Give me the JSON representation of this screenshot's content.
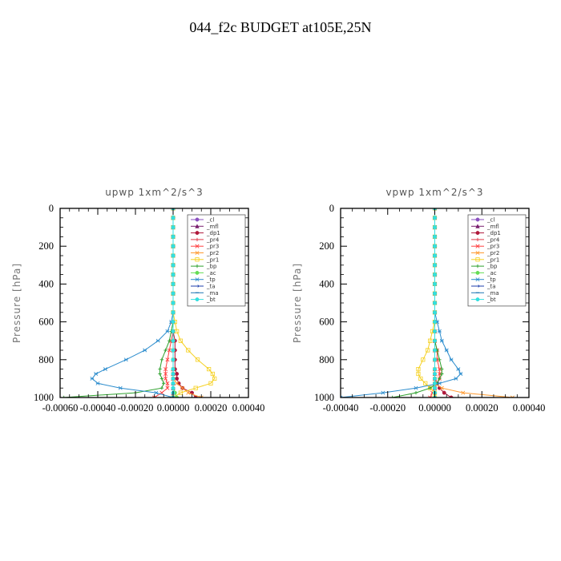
{
  "title": "044_f2c  BUDGET at105E,25N",
  "chart_data": [
    {
      "type": "line",
      "title": "upwp   1xm^2/s^3",
      "xlabel": "",
      "ylabel": "Pressure [hPa]",
      "xlim": [
        -0.0006,
        0.0004
      ],
      "ylim": [
        1000,
        0
      ],
      "xtick_labels": [
        "-0.00060",
        "-0.00040",
        "-0.00020",
        "0.00000",
        "0.00020",
        "0.00040"
      ],
      "xticks": [
        -0.0006,
        -0.0004,
        -0.0002,
        0.0,
        0.0002,
        0.0004
      ],
      "ytick_labels": [
        "0",
        "200",
        "400",
        "600",
        "800",
        "1000"
      ],
      "yticks": [
        0,
        200,
        400,
        600,
        800,
        1000
      ],
      "legend": "top-right",
      "y": [
        0,
        50,
        100,
        150,
        200,
        250,
        300,
        350,
        400,
        450,
        500,
        550,
        600,
        650,
        700,
        750,
        800,
        850,
        875,
        900,
        925,
        950,
        975,
        1000
      ],
      "series": [
        {
          "name": "_cl",
          "color": "#8a4fbf",
          "marker": "circle",
          "values": [
            0,
            0,
            0,
            0,
            0,
            0,
            0,
            0,
            0,
            0,
            0,
            0,
            0,
            0,
            0,
            0,
            0,
            0,
            0,
            0,
            0,
            0,
            0,
            0
          ]
        },
        {
          "name": "_mfl",
          "color": "#7a1f6e",
          "marker": "triangle",
          "values": [
            0,
            0,
            0,
            0,
            0,
            0,
            0,
            0,
            0,
            0,
            0,
            0,
            0,
            0,
            0,
            0,
            0,
            0,
            0,
            0,
            0,
            0,
            0,
            0
          ]
        },
        {
          "name": "_dp1",
          "color": "#b01a3c",
          "marker": "circle",
          "values": [
            0,
            0,
            0,
            0,
            0,
            0,
            0,
            0,
            0,
            0,
            0,
            0,
            0,
            0,
            1e-05,
            1e-05,
            1e-05,
            1e-05,
            2e-05,
            2e-05,
            3e-05,
            5e-05,
            0.0001,
            0.00012
          ]
        },
        {
          "name": "_pr4",
          "color": "#e03a4a",
          "marker": "plus",
          "values": [
            0,
            0,
            0,
            0,
            0,
            0,
            0,
            0,
            0,
            0,
            0,
            0,
            0,
            0,
            0,
            0,
            0,
            0,
            0,
            0,
            0,
            0,
            0,
            0
          ]
        },
        {
          "name": "_pr3",
          "color": "#ff4040",
          "marker": "cross",
          "values": [
            0,
            0,
            0,
            0,
            0,
            0,
            0,
            0,
            0,
            0,
            0,
            0,
            0,
            0,
            -1e-05,
            -2e-05,
            -3e-05,
            -4e-05,
            -4e-05,
            -4e-05,
            -3e-05,
            -3e-05,
            -6e-05,
            -0.0001
          ]
        },
        {
          "name": "_pr2",
          "color": "#ff9a30",
          "marker": "cross",
          "values": [
            0,
            0,
            0,
            0,
            0,
            0,
            0,
            0,
            0,
            0,
            0,
            0,
            0,
            0,
            0,
            0,
            0,
            0,
            0,
            0,
            2e-05,
            5e-05,
            8e-05,
            0.00015
          ]
        },
        {
          "name": "_pr1",
          "color": "#f5d020",
          "marker": "square",
          "values": [
            0,
            0,
            0,
            0,
            0,
            0,
            0,
            0,
            0,
            0,
            0,
            0,
            1e-05,
            2e-05,
            4e-05,
            8e-05,
            0.00013,
            0.00019,
            0.00021,
            0.00022,
            0.0002,
            0.00012,
            4e-05,
            0
          ]
        },
        {
          "name": "_bp",
          "color": "#2ca02c",
          "marker": "plus",
          "values": [
            0,
            0,
            0,
            0,
            0,
            0,
            0,
            0,
            0,
            0,
            0,
            0,
            0,
            -1e-05,
            -2e-05,
            -4e-05,
            -6e-05,
            -7e-05,
            -7e-05,
            -6e-05,
            -5e-05,
            -6e-05,
            -0.0002,
            -0.00058
          ]
        },
        {
          "name": "_ac",
          "color": "#66dd55",
          "marker": "circle",
          "values": [
            0,
            0,
            0,
            0,
            0,
            0,
            0,
            0,
            0,
            0,
            0,
            0,
            0,
            0,
            0,
            0,
            0,
            0,
            0,
            0,
            0,
            0,
            1e-05,
            2e-05
          ]
        },
        {
          "name": "_tp",
          "color": "#2b8ccd",
          "marker": "asterisk",
          "values": [
            0,
            0,
            0,
            0,
            0,
            0,
            0,
            0,
            0,
            0,
            0,
            0,
            -1e-05,
            -3e-05,
            -8e-05,
            -0.00015,
            -0.00025,
            -0.00036,
            -0.00041,
            -0.00043,
            -0.0004,
            -0.00028,
            -9e-05,
            0
          ]
        },
        {
          "name": "_ta",
          "color": "#1f3fae",
          "marker": "arrow",
          "values": [
            0,
            0,
            0,
            0,
            0,
            0,
            0,
            0,
            0,
            0,
            0,
            0,
            0,
            0,
            0,
            0,
            0,
            0,
            0,
            0,
            0,
            0,
            0,
            0
          ]
        },
        {
          "name": "_ma",
          "color": "#1f77b4",
          "marker": "dash",
          "values": [
            0,
            0,
            0,
            0,
            0,
            0,
            0,
            0,
            0,
            0,
            0,
            0,
            0,
            0,
            0,
            0,
            0,
            0,
            0,
            0,
            0,
            0,
            0,
            0
          ]
        },
        {
          "name": "_bt",
          "color": "#33e0e0",
          "marker": "circle",
          "values": [
            0,
            0,
            0,
            0,
            0,
            0,
            0,
            0,
            0,
            0,
            0,
            0,
            0,
            0,
            0,
            0,
            0,
            0,
            0,
            0,
            0,
            0,
            0,
            0
          ]
        }
      ]
    },
    {
      "type": "line",
      "title": "vpwp   1xm^2/s^3",
      "xlabel": "",
      "ylabel": "Pressure [hPa]",
      "xlim": [
        -0.0004,
        0.0004
      ],
      "ylim": [
        1000,
        0
      ],
      "xtick_labels": [
        "-0.00040",
        "-0.00020",
        "0.00000",
        "0.00020",
        "0.00040"
      ],
      "xticks": [
        -0.0004,
        -0.0002,
        0.0,
        0.0002,
        0.0004
      ],
      "ytick_labels": [
        "0",
        "200",
        "400",
        "600",
        "800",
        "1000"
      ],
      "yticks": [
        0,
        200,
        400,
        600,
        800,
        1000
      ],
      "legend": "top-right",
      "y": [
        0,
        50,
        100,
        150,
        200,
        250,
        300,
        350,
        400,
        450,
        500,
        550,
        600,
        650,
        700,
        750,
        800,
        850,
        875,
        900,
        925,
        950,
        975,
        1000
      ],
      "series": [
        {
          "name": "_cl",
          "color": "#8a4fbf",
          "marker": "circle",
          "values": [
            0,
            0,
            0,
            0,
            0,
            0,
            0,
            0,
            0,
            0,
            0,
            0,
            0,
            0,
            0,
            0,
            0,
            0,
            0,
            0,
            0,
            0,
            0,
            0
          ]
        },
        {
          "name": "_mfl",
          "color": "#7a1f6e",
          "marker": "triangle",
          "values": [
            0,
            0,
            0,
            0,
            0,
            0,
            0,
            0,
            0,
            0,
            0,
            0,
            0,
            0,
            0,
            0,
            0,
            0,
            0,
            0,
            0,
            0,
            0,
            0
          ]
        },
        {
          "name": "_dp1",
          "color": "#b01a3c",
          "marker": "circle",
          "values": [
            0,
            0,
            0,
            0,
            0,
            0,
            0,
            0,
            0,
            0,
            0,
            0,
            0,
            0,
            0,
            0,
            0,
            0,
            0,
            0,
            1e-05,
            2e-05,
            4e-05,
            7e-05
          ]
        },
        {
          "name": "_pr4",
          "color": "#e03a4a",
          "marker": "plus",
          "values": [
            0,
            0,
            0,
            0,
            0,
            0,
            0,
            0,
            0,
            0,
            0,
            0,
            0,
            0,
            0,
            0,
            0,
            0,
            0,
            0,
            0,
            0,
            0,
            0
          ]
        },
        {
          "name": "_pr3",
          "color": "#ff4040",
          "marker": "cross",
          "values": [
            0,
            0,
            0,
            0,
            0,
            0,
            0,
            0,
            0,
            0,
            0,
            0,
            0,
            0,
            0,
            1e-05,
            1e-05,
            2e-05,
            2e-05,
            2e-05,
            1e-05,
            0,
            -1e-05,
            -2e-05
          ]
        },
        {
          "name": "_pr2",
          "color": "#ff9a30",
          "marker": "cross",
          "values": [
            0,
            0,
            0,
            0,
            0,
            0,
            0,
            0,
            0,
            0,
            0,
            0,
            0,
            0,
            0,
            0,
            0,
            0,
            0,
            0,
            0,
            3e-05,
            0.00012,
            0.00033
          ]
        },
        {
          "name": "_pr1",
          "color": "#f5d020",
          "marker": "square",
          "values": [
            0,
            0,
            0,
            0,
            0,
            0,
            0,
            0,
            0,
            0,
            0,
            0,
            0,
            -1e-05,
            -2e-05,
            -3e-05,
            -5e-05,
            -7e-05,
            -7e-05,
            -6e-05,
            -4e-05,
            -2e-05,
            0,
            0
          ]
        },
        {
          "name": "_bp",
          "color": "#2ca02c",
          "marker": "plus",
          "values": [
            0,
            0,
            0,
            0,
            0,
            0,
            0,
            0,
            0,
            0,
            0,
            0,
            0,
            0,
            0,
            1e-05,
            2e-05,
            3e-05,
            3e-05,
            2e-05,
            1e-05,
            -2e-05,
            -8e-05,
            -0.00018
          ]
        },
        {
          "name": "_ac",
          "color": "#66dd55",
          "marker": "circle",
          "values": [
            0,
            0,
            0,
            0,
            0,
            0,
            0,
            0,
            0,
            0,
            0,
            0,
            0,
            0,
            0,
            0,
            0,
            0,
            0,
            0,
            0,
            0,
            0,
            0
          ]
        },
        {
          "name": "_tp",
          "color": "#2b8ccd",
          "marker": "asterisk",
          "values": [
            0,
            0,
            0,
            0,
            0,
            0,
            0,
            0,
            0,
            0,
            0,
            0,
            1e-05,
            2e-05,
            3e-05,
            5e-05,
            7e-05,
            0.0001,
            0.00011,
            9e-05,
            2e-05,
            -8e-05,
            -0.00022,
            -0.0004
          ]
        },
        {
          "name": "_ta",
          "color": "#1f3fae",
          "marker": "arrow",
          "values": [
            0,
            0,
            0,
            0,
            0,
            0,
            0,
            0,
            0,
            0,
            0,
            0,
            0,
            0,
            0,
            0,
            0,
            0,
            0,
            0,
            0,
            0,
            0,
            0
          ]
        },
        {
          "name": "_ma",
          "color": "#1f77b4",
          "marker": "dash",
          "values": [
            0,
            0,
            0,
            0,
            0,
            0,
            0,
            0,
            0,
            0,
            0,
            0,
            0,
            0,
            0,
            0,
            0,
            0,
            0,
            0,
            0,
            0,
            0,
            0
          ]
        },
        {
          "name": "_bt",
          "color": "#33e0e0",
          "marker": "circle",
          "values": [
            0,
            0,
            0,
            0,
            0,
            0,
            0,
            0,
            0,
            0,
            0,
            0,
            0,
            0,
            0,
            0,
            0,
            0,
            0,
            0,
            0,
            0,
            0,
            0
          ]
        }
      ]
    }
  ]
}
